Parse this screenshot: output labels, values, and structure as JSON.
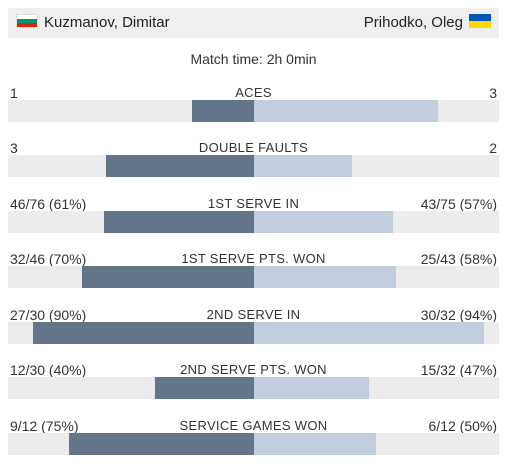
{
  "header": {
    "player_left": "Kuzmanov, Dimitar",
    "player_right": "Prihodko, Oleg",
    "flag_left": "bulgaria-flag",
    "flag_right": "ukraine-flag"
  },
  "match_time": "Match time: 2h 0min",
  "colors": {
    "left_bar": "#657589",
    "right_bar": "#c2cede",
    "track": "#ececec"
  },
  "stats": [
    {
      "label": "ACES",
      "left": "1",
      "right": "3",
      "left_share": 0.25,
      "right_share": 0.75
    },
    {
      "label": "DOUBLE FAULTS",
      "left": "3",
      "right": "2",
      "left_share": 0.6,
      "right_share": 0.4
    },
    {
      "label": "1ST SERVE IN",
      "left": "46/76 (61%)",
      "right": "43/75 (57%)",
      "left_share": 0.61,
      "right_share": 0.57
    },
    {
      "label": "1ST SERVE PTS. WON",
      "left": "32/46 (70%)",
      "right": "25/43 (58%)",
      "left_share": 0.7,
      "right_share": 0.58
    },
    {
      "label": "2ND SERVE IN",
      "left": "27/30 (90%)",
      "right": "30/32 (94%)",
      "left_share": 0.9,
      "right_share": 0.94
    },
    {
      "label": "2ND SERVE PTS. WON",
      "left": "12/30 (40%)",
      "right": "15/32 (47%)",
      "left_share": 0.4,
      "right_share": 0.47
    },
    {
      "label": "SERVICE GAMES WON",
      "left": "9/12 (75%)",
      "right": "6/12 (50%)",
      "left_share": 0.75,
      "right_share": 0.5
    }
  ]
}
